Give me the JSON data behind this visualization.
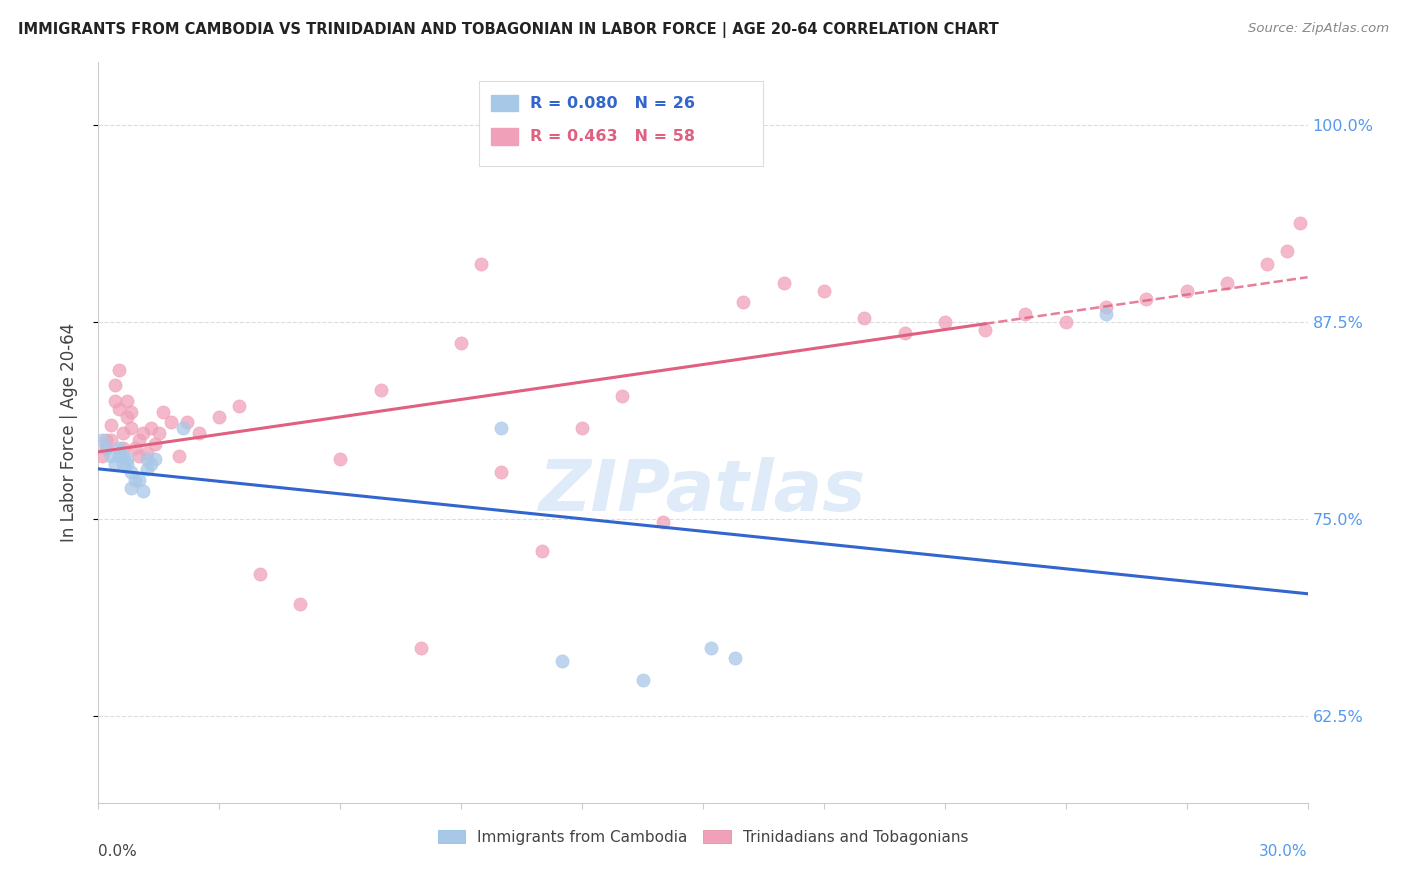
{
  "title": "IMMIGRANTS FROM CAMBODIA VS TRINIDADIAN AND TOBAGONIAN IN LABOR FORCE | AGE 20-64 CORRELATION CHART",
  "source": "Source: ZipAtlas.com",
  "ylabel": "In Labor Force | Age 20-64",
  "yticks": [
    0.625,
    0.75,
    0.875,
    1.0
  ],
  "ytick_labels": [
    "62.5%",
    "75.0%",
    "87.5%",
    "100.0%"
  ],
  "xlim": [
    0.0,
    0.3
  ],
  "ylim": [
    0.57,
    1.04
  ],
  "watermark": "ZIPatlas",
  "legend_label1": "Immigrants from Cambodia",
  "legend_label2": "Trinidadians and Tobagonians",
  "blue_color": "#A8C8E8",
  "pink_color": "#F0A0B8",
  "blue_line_color": "#3366CC",
  "pink_line_color": "#E06080",
  "scatter_alpha": 0.75,
  "scatter_size": 90,
  "cambodia_x": [
    0.001,
    0.002,
    0.003,
    0.004,
    0.005,
    0.005,
    0.006,
    0.006,
    0.007,
    0.007,
    0.008,
    0.008,
    0.009,
    0.01,
    0.011,
    0.012,
    0.012,
    0.013,
    0.014,
    0.021,
    0.1,
    0.115,
    0.135,
    0.152,
    0.158,
    0.25
  ],
  "cambodia_y": [
    0.8,
    0.795,
    0.79,
    0.785,
    0.79,
    0.795,
    0.785,
    0.79,
    0.788,
    0.785,
    0.77,
    0.78,
    0.775,
    0.775,
    0.768,
    0.782,
    0.788,
    0.785,
    0.788,
    0.808,
    0.808,
    0.66,
    0.648,
    0.668,
    0.662,
    0.88
  ],
  "trinidadian_x": [
    0.001,
    0.002,
    0.002,
    0.003,
    0.003,
    0.004,
    0.004,
    0.005,
    0.005,
    0.006,
    0.006,
    0.007,
    0.007,
    0.008,
    0.008,
    0.009,
    0.01,
    0.01,
    0.011,
    0.012,
    0.013,
    0.014,
    0.015,
    0.016,
    0.018,
    0.02,
    0.022,
    0.025,
    0.03,
    0.035,
    0.04,
    0.05,
    0.06,
    0.07,
    0.08,
    0.09,
    0.095,
    0.1,
    0.11,
    0.12,
    0.13,
    0.14,
    0.16,
    0.17,
    0.18,
    0.19,
    0.2,
    0.21,
    0.22,
    0.23,
    0.24,
    0.25,
    0.26,
    0.27,
    0.28,
    0.29,
    0.295,
    0.298
  ],
  "trinidadian_y": [
    0.79,
    0.8,
    0.795,
    0.81,
    0.8,
    0.825,
    0.835,
    0.82,
    0.845,
    0.795,
    0.805,
    0.815,
    0.825,
    0.808,
    0.818,
    0.795,
    0.79,
    0.8,
    0.805,
    0.792,
    0.808,
    0.798,
    0.805,
    0.818,
    0.812,
    0.79,
    0.812,
    0.805,
    0.815,
    0.822,
    0.715,
    0.696,
    0.788,
    0.832,
    0.668,
    0.862,
    0.912,
    0.78,
    0.73,
    0.808,
    0.828,
    0.748,
    0.888,
    0.9,
    0.895,
    0.878,
    0.868,
    0.875,
    0.87,
    0.88,
    0.875,
    0.885,
    0.89,
    0.895,
    0.9,
    0.912,
    0.92,
    0.938
  ]
}
